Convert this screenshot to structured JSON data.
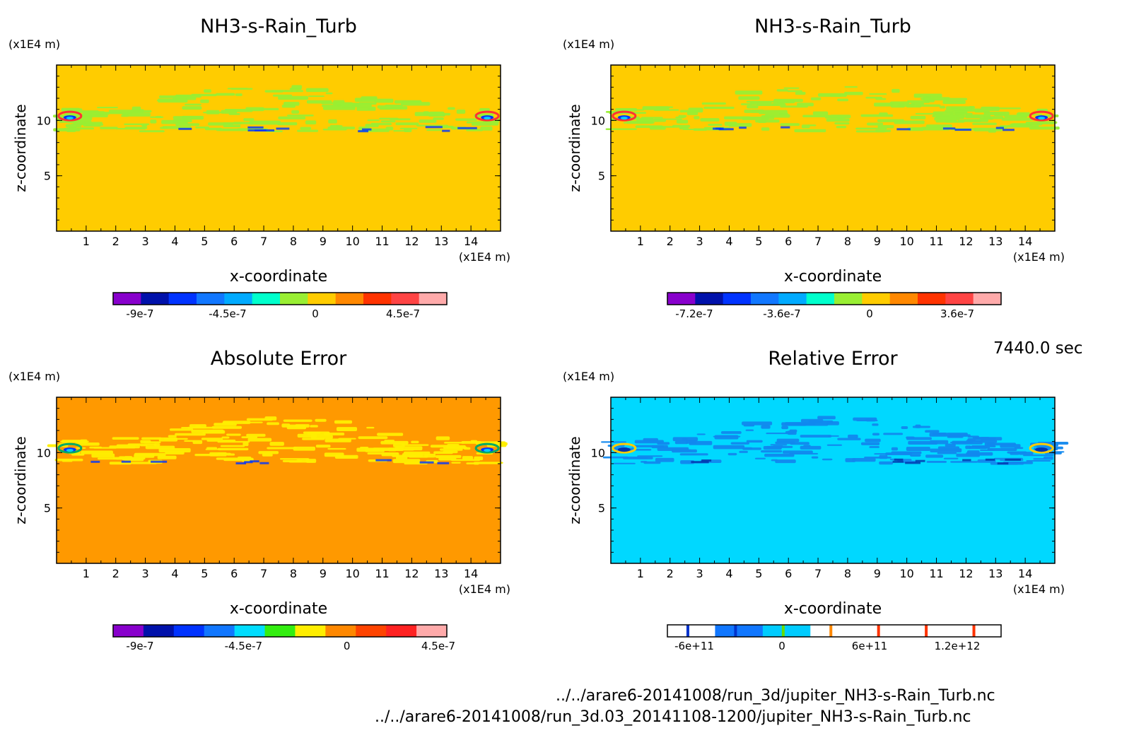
{
  "time_label": "7440.0 sec",
  "footer_lines": [
    "../../arare6-20141008/run_3d/jupiter_NH3-s-Rain_Turb.nc",
    "../../arare6-20141008/run_3d.03_20141108-1200/jupiter_NH3-s-Rain_Turb.nc"
  ],
  "chart_data": [
    {
      "type": "heatmap",
      "title": "NH3-s-Rain_Turb",
      "xlabel": "x-coordinate",
      "ylabel": "z-coordinate",
      "x_unit": "(x1E4 m)",
      "y_unit": "(x1E4 m)",
      "xlim": [
        0,
        15
      ],
      "ylim": [
        0,
        15
      ],
      "xticks": [
        "1",
        "2",
        "3",
        "4",
        "5",
        "6",
        "7",
        "8",
        "9",
        "10",
        "11",
        "12",
        "13",
        "14"
      ],
      "yticks": [
        "5",
        "10"
      ],
      "background_color": "#ffcc00",
      "band_color": "#99ee33",
      "edge_feature_colors": [
        "#ff3333",
        "#0033ff",
        "#00ccff"
      ],
      "colorbar": {
        "colors": [
          "#8800cc",
          "#0011aa",
          "#0033ff",
          "#1177ff",
          "#00aaff",
          "#00ffcc",
          "#99ee33",
          "#ffcc00",
          "#ff8800",
          "#ff3300",
          "#ff4444",
          "#ffaaaa"
        ],
        "labels": [
          "-9e-7",
          "-4.5e-7",
          "0",
          "4.5e-7"
        ]
      }
    },
    {
      "type": "heatmap",
      "title": "NH3-s-Rain_Turb",
      "xlabel": "x-coordinate",
      "ylabel": "z-coordinate",
      "x_unit": "(x1E4 m)",
      "y_unit": "(x1E4 m)",
      "xlim": [
        0,
        15
      ],
      "ylim": [
        0,
        15
      ],
      "xticks": [
        "1",
        "2",
        "3",
        "4",
        "5",
        "6",
        "7",
        "8",
        "9",
        "10",
        "11",
        "12",
        "13",
        "14"
      ],
      "yticks": [
        "5",
        "10"
      ],
      "background_color": "#ffcc00",
      "band_color": "#99ee33",
      "edge_feature_colors": [
        "#ff3333",
        "#0033ff",
        "#00ccff"
      ],
      "colorbar": {
        "colors": [
          "#8800cc",
          "#0011aa",
          "#0033ff",
          "#1177ff",
          "#00aaff",
          "#00ffcc",
          "#99ee33",
          "#ffcc00",
          "#ff8800",
          "#ff3300",
          "#ff4444",
          "#ffaaaa"
        ],
        "labels": [
          "-7.2e-7",
          "-3.6e-7",
          "0",
          "3.6e-7"
        ]
      }
    },
    {
      "type": "heatmap",
      "title": "Absolute Error",
      "xlabel": "x-coordinate",
      "ylabel": "z-coordinate",
      "x_unit": "(x1E4 m)",
      "y_unit": "(x1E4 m)",
      "xlim": [
        0,
        15
      ],
      "ylim": [
        0,
        15
      ],
      "xticks": [
        "1",
        "2",
        "3",
        "4",
        "5",
        "6",
        "7",
        "8",
        "9",
        "10",
        "11",
        "12",
        "13",
        "14"
      ],
      "yticks": [
        "5",
        "10"
      ],
      "background_color": "#ff9900",
      "band_color": "#ffee00",
      "edge_feature_colors": [
        "#00aa66",
        "#0033ff",
        "#00ccff"
      ],
      "colorbar": {
        "colors": [
          "#8800cc",
          "#0011aa",
          "#0033ff",
          "#1177ff",
          "#00ddff",
          "#33ee11",
          "#ffee00",
          "#ff8800",
          "#ff4400",
          "#ff2222",
          "#ffaaaa"
        ],
        "labels": [
          "-9e-7",
          "-4.5e-7",
          "0",
          "4.5e-7"
        ]
      }
    },
    {
      "type": "heatmap",
      "title": "Relative Error",
      "xlabel": "x-coordinate",
      "ylabel": "z-coordinate",
      "x_unit": "(x1E4 m)",
      "y_unit": "(x1E4 m)",
      "xlim": [
        0,
        15
      ],
      "ylim": [
        0,
        15
      ],
      "xticks": [
        "1",
        "2",
        "3",
        "4",
        "5",
        "6",
        "7",
        "8",
        "9",
        "10",
        "11",
        "12",
        "13",
        "14"
      ],
      "yticks": [
        "5",
        "10"
      ],
      "background_color": "#00d8ff",
      "band_color": "#1188ee",
      "edge_feature_colors": [
        "#ffcc00",
        "#0033aa",
        "#0033aa"
      ],
      "colorbar": {
        "colors": [
          "#ffffff",
          "#1177ff",
          "#00ccff",
          "#ffffff",
          "#ffffff",
          "#ffffff",
          "#ffffff"
        ],
        "lines": [
          "#0033cc",
          "#0033cc",
          "#66dd00",
          "#ff8800",
          "#ff3300",
          "#ff3300",
          "#ff3300"
        ],
        "labels": [
          "-6e+11",
          "0",
          "6e+11",
          "1.2e+12"
        ]
      }
    }
  ]
}
